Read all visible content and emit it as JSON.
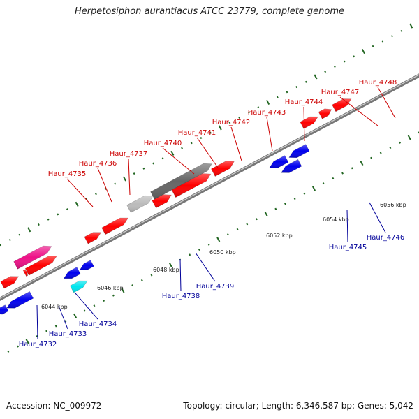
{
  "title": "Herpetosiphon aurantiacus ATCC 23779, complete genome",
  "accession_label": "Accession: NC_009972",
  "summary_label": "Topology: circular; Length: 6,346,587 bp; Genes: 5,042",
  "colors": {
    "forward_label": "#cc0000",
    "reverse_label": "#000099",
    "tick": "#226622",
    "backbone": "#888888",
    "leader_line_forward": "#cc0000",
    "leader_line_reverse": "#000099"
  },
  "scale_labels": [
    "6044 kbp",
    "6046 kbp",
    "6048 kbp",
    "6050 kbp",
    "6052 kbp",
    "6054 kbp",
    "6056 kbp"
  ],
  "genes_forward": [
    {
      "name": "Haur_4735",
      "color": "#ff0000"
    },
    {
      "name": "Haur_4736",
      "color": "#ff0000"
    },
    {
      "name": "Haur_4737",
      "color": "#ee1188"
    },
    {
      "name": "Haur_4740",
      "color": "#ff0000"
    },
    {
      "name": "Haur_4741",
      "color": "#bbbbbb"
    },
    {
      "name": "Haur_4742",
      "color": "#666666"
    },
    {
      "name": "Haur_4743",
      "color": "#ff0000"
    },
    {
      "name": "Haur_4744",
      "color": "#ff0000"
    },
    {
      "name": "Haur_4747",
      "color": "#ff0000"
    },
    {
      "name": "Haur_4748",
      "color": "#ff0000"
    }
  ],
  "genes_reverse": [
    {
      "name": "Haur_4732",
      "color": "#0000ee"
    },
    {
      "name": "Haur_4733",
      "color": "#0000ee"
    },
    {
      "name": "Haur_4734",
      "color": "#0000ee"
    },
    {
      "name": "Haur_4738",
      "color": "#00e5ee"
    },
    {
      "name": "Haur_4739",
      "color": "#0000ee"
    },
    {
      "name": "Haur_4745",
      "color": "#0000ee"
    },
    {
      "name": "Haur_4746",
      "color": "#0000ee"
    }
  ]
}
